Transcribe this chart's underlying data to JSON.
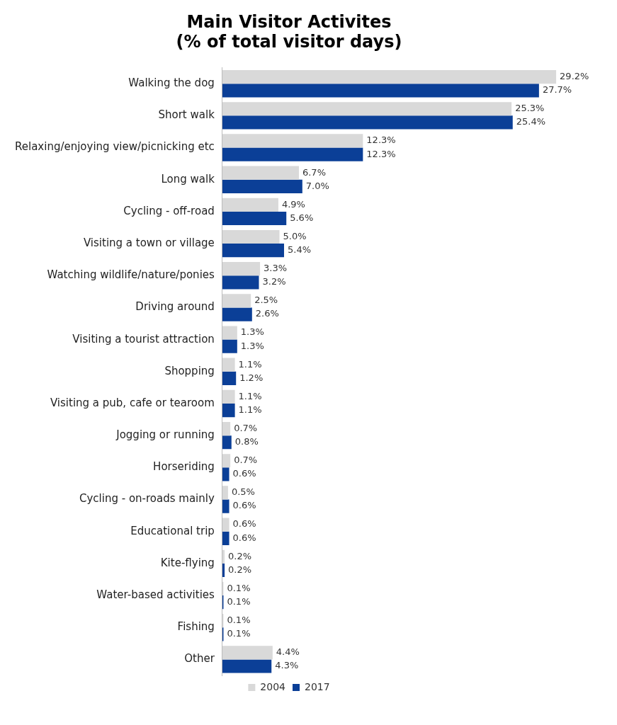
{
  "chart_data": {
    "type": "bar",
    "orientation": "horizontal",
    "title": "Main Visitor Activites",
    "subtitle": "(% of total visitor days)",
    "categories": [
      "Walking the dog",
      "Short walk",
      "Relaxing/enjoying view/picnicking etc",
      "Long walk",
      "Cycling - off-road",
      "Visiting a town or village",
      "Watching wildlife/nature/ponies",
      "Driving around",
      "Visiting a tourist attraction",
      "Shopping",
      "Visiting a pub, cafe or tearoom",
      "Jogging or running",
      "Horseriding",
      "Cycling - on-roads mainly",
      "Educational trip",
      "Kite-flying",
      "Water-based activities",
      "Fishing",
      "Other"
    ],
    "series": [
      {
        "name": "2004",
        "color": "#d9d9d9",
        "values": [
          29.2,
          25.3,
          12.3,
          6.7,
          4.9,
          5.0,
          3.3,
          2.5,
          1.3,
          1.1,
          1.1,
          0.7,
          0.7,
          0.5,
          0.6,
          0.2,
          0.1,
          0.1,
          4.4
        ],
        "value_labels": [
          "29.2%",
          "25.3%",
          "12.3%",
          "6.7%",
          "4.9%",
          "5.0%",
          "3.3%",
          "2.5%",
          "1.3%",
          "1.1%",
          "1.1%",
          "0.7%",
          "0.7%",
          "0.5%",
          "0.6%",
          "0.2%",
          "0.1%",
          "0.1%",
          "4.4%"
        ]
      },
      {
        "name": "2017",
        "color": "#0b3f97",
        "values": [
          27.7,
          25.4,
          12.3,
          7.0,
          5.6,
          5.4,
          3.2,
          2.6,
          1.3,
          1.2,
          1.1,
          0.8,
          0.6,
          0.6,
          0.6,
          0.2,
          0.1,
          0.1,
          4.3
        ],
        "value_labels": [
          "27.7%",
          "25.4%",
          "12.3%",
          "7.0%",
          "5.6%",
          "5.4%",
          "3.2%",
          "2.6%",
          "1.3%",
          "1.2%",
          "1.1%",
          "0.8%",
          "0.6%",
          "0.6%",
          "0.6%",
          "0.2%",
          "0.1%",
          "0.1%",
          "4.3%"
        ]
      }
    ],
    "legend": "bottom"
  }
}
